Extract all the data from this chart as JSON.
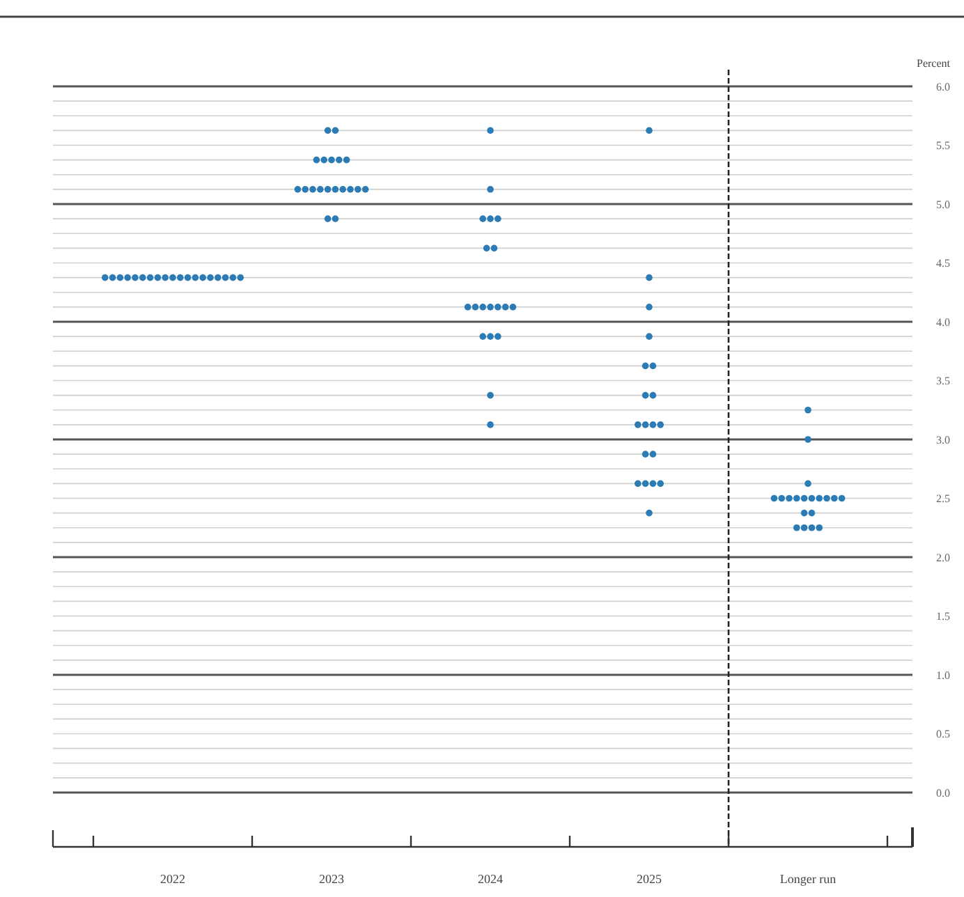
{
  "chart_data": {
    "type": "scatter",
    "ylabel": "Percent",
    "categories": [
      "2022",
      "2023",
      "2024",
      "2025",
      "Longer run"
    ],
    "ylim": [
      0,
      6
    ],
    "yticks": [
      {
        "value": 0,
        "label": "0.0"
      },
      {
        "value": 0.125,
        "label": null
      },
      {
        "value": 0.25,
        "label": null
      },
      {
        "value": 0.375,
        "label": null
      },
      {
        "value": 0.5,
        "label": "0.5"
      },
      {
        "value": 0.625,
        "label": null
      },
      {
        "value": 0.75,
        "label": null
      },
      {
        "value": 0.875,
        "label": null
      },
      {
        "value": 1,
        "label": "1.0"
      },
      {
        "value": 1.125,
        "label": null
      },
      {
        "value": 1.25,
        "label": null
      },
      {
        "value": 1.375,
        "label": null
      },
      {
        "value": 1.5,
        "label": "1.5"
      },
      {
        "value": 1.625,
        "label": null
      },
      {
        "value": 1.75,
        "label": null
      },
      {
        "value": 1.875,
        "label": null
      },
      {
        "value": 2,
        "label": "2.0"
      },
      {
        "value": 2.125,
        "label": null
      },
      {
        "value": 2.25,
        "label": null
      },
      {
        "value": 2.375,
        "label": null
      },
      {
        "value": 2.5,
        "label": "2.5"
      },
      {
        "value": 2.625,
        "label": null
      },
      {
        "value": 2.75,
        "label": null
      },
      {
        "value": 2.875,
        "label": null
      },
      {
        "value": 3,
        "label": "3.0"
      },
      {
        "value": 3.125,
        "label": null
      },
      {
        "value": 3.25,
        "label": null
      },
      {
        "value": 3.375,
        "label": null
      },
      {
        "value": 3.5,
        "label": "3.5"
      },
      {
        "value": 3.625,
        "label": null
      },
      {
        "value": 3.75,
        "label": null
      },
      {
        "value": 3.875,
        "label": null
      },
      {
        "value": 4,
        "label": "4.0"
      },
      {
        "value": 4.125,
        "label": null
      },
      {
        "value": 4.25,
        "label": null
      },
      {
        "value": 4.375,
        "label": null
      },
      {
        "value": 4.5,
        "label": "4.5"
      },
      {
        "value": 4.625,
        "label": null
      },
      {
        "value": 4.75,
        "label": null
      },
      {
        "value": 4.875,
        "label": null
      },
      {
        "value": 5,
        "label": "5.0"
      },
      {
        "value": 5.125,
        "label": null
      },
      {
        "value": 5.25,
        "label": null
      },
      {
        "value": 5.375,
        "label": null
      },
      {
        "value": 5.5,
        "label": "5.5"
      },
      {
        "value": 5.625,
        "label": null
      },
      {
        "value": 5.75,
        "label": null
      },
      {
        "value": 5.875,
        "label": null
      },
      {
        "value": 6,
        "label": "6.0"
      }
    ],
    "grid": "y",
    "marker": "circle",
    "series": [
      {
        "color": "#2b7bb4",
        "values": [
          4.375,
          5.625,
          5.625,
          5.625,
          3.25
        ]
      },
      {
        "color": "#2b7bb4",
        "values": [
          4.375,
          5.625,
          5.125,
          4.375,
          3.0
        ]
      },
      {
        "color": "#2b7bb4",
        "values": [
          4.375,
          5.375,
          4.875,
          4.125,
          2.625
        ]
      },
      {
        "color": "#2b7bb4",
        "values": [
          4.375,
          5.375,
          4.875,
          3.875,
          2.5
        ]
      },
      {
        "color": "#2b7bb4",
        "values": [
          4.375,
          5.375,
          4.875,
          3.625,
          2.5
        ]
      },
      {
        "color": "#2b7bb4",
        "values": [
          4.375,
          5.375,
          4.625,
          3.625,
          2.5
        ]
      },
      {
        "color": "#2b7bb4",
        "values": [
          4.375,
          5.375,
          4.625,
          3.375,
          2.5
        ]
      },
      {
        "color": "#2b7bb4",
        "values": [
          4.375,
          5.125,
          4.125,
          3.375,
          2.5
        ]
      },
      {
        "color": "#2b7bb4",
        "values": [
          4.375,
          5.125,
          4.125,
          3.125,
          2.5
        ]
      },
      {
        "color": "#2b7bb4",
        "values": [
          4.375,
          5.125,
          4.125,
          3.125,
          2.5
        ]
      },
      {
        "color": "#2b7bb4",
        "values": [
          4.375,
          5.125,
          4.125,
          3.125,
          2.5
        ]
      },
      {
        "color": "#2b7bb4",
        "values": [
          4.375,
          5.125,
          4.125,
          3.125,
          2.5
        ]
      },
      {
        "color": "#2b7bb4",
        "values": [
          4.375,
          5.125,
          4.125,
          2.875,
          2.5
        ]
      },
      {
        "color": "#2b7bb4",
        "values": [
          4.375,
          5.125,
          4.125,
          2.875,
          2.375
        ]
      },
      {
        "color": "#2b7bb4",
        "values": [
          4.375,
          5.125,
          3.875,
          2.625,
          2.375
        ]
      },
      {
        "color": "#2b7bb4",
        "values": [
          4.375,
          5.125,
          3.875,
          2.625,
          2.25
        ]
      },
      {
        "color": "#2b7bb4",
        "values": [
          4.375,
          5.125,
          3.875,
          2.625,
          2.25
        ]
      },
      {
        "color": "#2b7bb4",
        "values": [
          4.375,
          4.875,
          3.375,
          2.625,
          2.25
        ]
      },
      {
        "color": "#2b7bb4",
        "values": [
          4.375,
          4.875,
          3.125,
          2.375,
          2.25
        ]
      }
    ]
  }
}
